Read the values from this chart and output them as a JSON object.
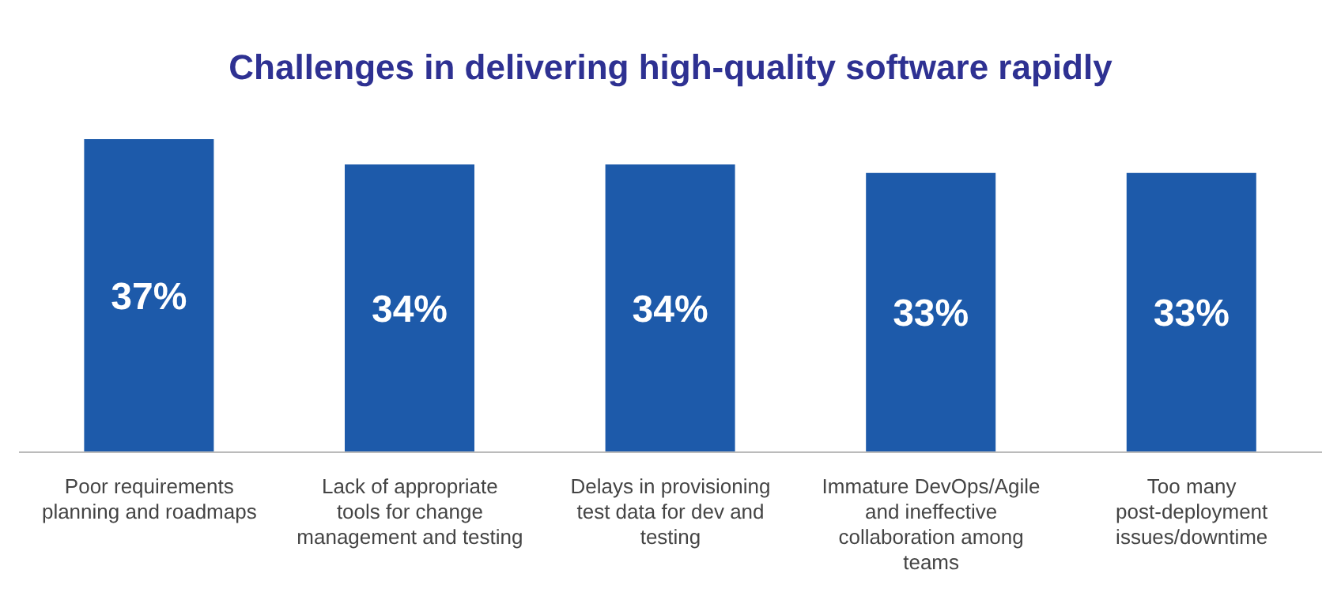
{
  "chart_data": {
    "type": "bar",
    "title": "Challenges in delivering high-quality software rapidly",
    "categories": [
      "Poor requirements planning and roadmaps",
      "Lack of appropriate tools for change management and testing",
      "Delays in provisioning test data for dev and testing",
      "Immature DevOps/Agile and ineffective collaboration among teams",
      "Too many post-deployment issues/downtime"
    ],
    "values": [
      37,
      34,
      34,
      33,
      33
    ],
    "value_labels": [
      "37%",
      "34%",
      "34%",
      "33%",
      "33%"
    ],
    "color": "#1d5aaa"
  }
}
